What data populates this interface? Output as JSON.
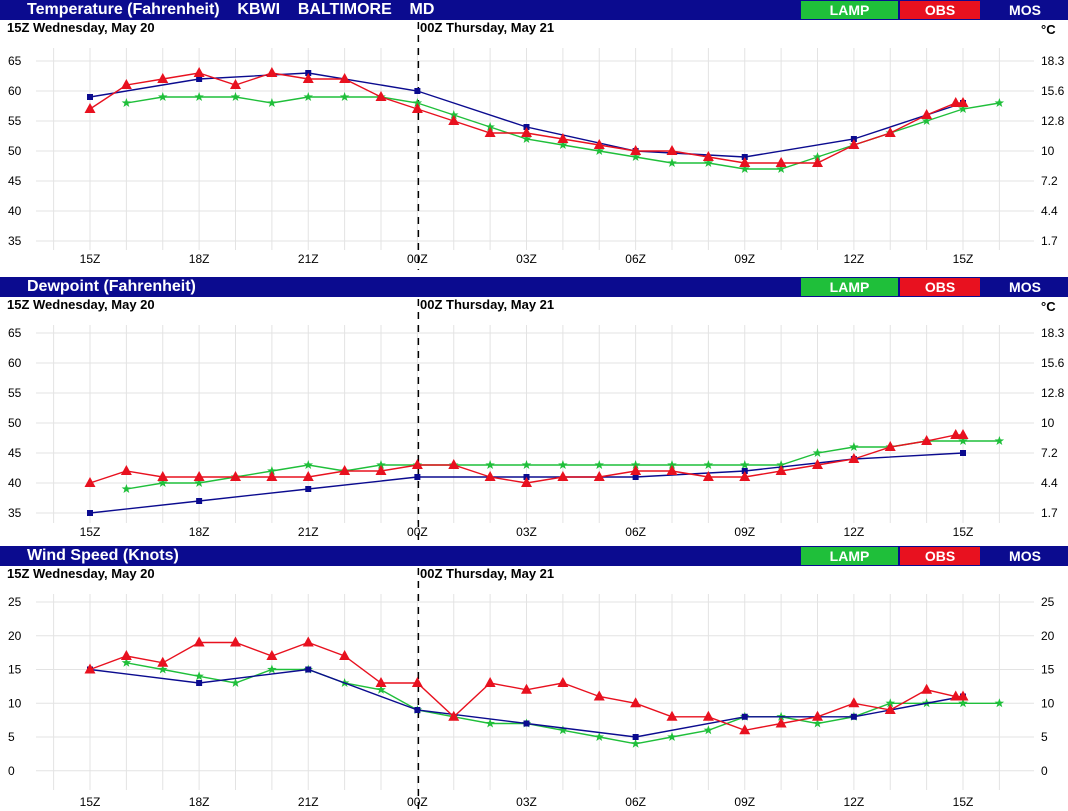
{
  "colors": {
    "header_bg": "#0b0b8f",
    "lamp": "#1fbf3a",
    "obs": "#e8111f",
    "mos": "#0b0b8f",
    "grid": "#e3e3e3"
  },
  "legend": {
    "lamp": "LAMP",
    "obs": "OBS",
    "mos": "MOS"
  },
  "date_left": "15Z Wednesday, May 20",
  "date_right": "00Z Thursday, May 21",
  "x_ticks": [
    "15Z",
    "18Z",
    "21Z",
    "00Z",
    "03Z",
    "06Z",
    "09Z",
    "12Z",
    "15Z"
  ],
  "panels": [
    {
      "title": "Temperature (Fahrenheit)    KBWI    BALTIMORE    MD",
      "right_unit": "°C",
      "y_ticks_left": [
        "65",
        "60",
        "55",
        "50",
        "45",
        "40",
        "35"
      ],
      "y_ticks_right": [
        "18.3",
        "15.6",
        "12.8",
        "10",
        "7.2",
        "4.4",
        "1.7"
      ]
    },
    {
      "title": "Dewpoint (Fahrenheit)",
      "right_unit": "°C",
      "y_ticks_left": [
        "65",
        "60",
        "55",
        "50",
        "45",
        "40",
        "35"
      ],
      "y_ticks_right": [
        "18.3",
        "15.6",
        "12.8",
        "10",
        "7.2",
        "4.4",
        "1.7"
      ]
    },
    {
      "title": "Wind Speed (Knots)",
      "right_unit": "",
      "y_ticks_left": [
        "25",
        "20",
        "15",
        "10",
        "5",
        "0"
      ],
      "y_ticks_right": [
        "25",
        "20",
        "15",
        "10",
        "5",
        "0"
      ]
    }
  ],
  "chart_data": [
    {
      "type": "line",
      "title": "Temperature (Fahrenheit)    KBWI    BALTIMORE    MD",
      "xlabel": "",
      "ylabel": "",
      "x_unit": "hours from 15Z May 20",
      "ylim": [
        32,
        67
      ],
      "y_ticks": [
        65,
        60,
        55,
        50,
        45,
        40,
        35
      ],
      "grid": true,
      "legend_placement": "top-right",
      "series": [
        {
          "name": "MOS",
          "points": [
            [
              0,
              59
            ],
            [
              3,
              62
            ],
            [
              6,
              63
            ],
            [
              9,
              60
            ],
            [
              12,
              54
            ],
            [
              15,
              50
            ],
            [
              18,
              49
            ],
            [
              21,
              52
            ],
            [
              24,
              58
            ]
          ]
        },
        {
          "name": "OBS",
          "points": [
            [
              0,
              57
            ],
            [
              1,
              61
            ],
            [
              2,
              62
            ],
            [
              3,
              63
            ],
            [
              4,
              61
            ],
            [
              5,
              63
            ],
            [
              6,
              62
            ],
            [
              7,
              62
            ],
            [
              8,
              59
            ],
            [
              9,
              57
            ],
            [
              10,
              55
            ],
            [
              11,
              53
            ],
            [
              12,
              53
            ],
            [
              13,
              52
            ],
            [
              14,
              51
            ],
            [
              15,
              50
            ],
            [
              16,
              50
            ],
            [
              17,
              49
            ],
            [
              18,
              48
            ],
            [
              19,
              48
            ],
            [
              20,
              48
            ],
            [
              21,
              51
            ],
            [
              22,
              53
            ],
            [
              23,
              56
            ],
            [
              23.8,
              58
            ],
            [
              24,
              58
            ]
          ]
        },
        {
          "name": "LAMP",
          "points": [
            [
              1,
              58
            ],
            [
              2,
              59
            ],
            [
              3,
              59
            ],
            [
              4,
              59
            ],
            [
              5,
              58
            ],
            [
              6,
              59
            ],
            [
              7,
              59
            ],
            [
              8,
              59
            ],
            [
              9,
              58
            ],
            [
              10,
              56
            ],
            [
              11,
              54
            ],
            [
              12,
              52
            ],
            [
              13,
              51
            ],
            [
              14,
              50
            ],
            [
              15,
              49
            ],
            [
              16,
              48
            ],
            [
              17,
              48
            ],
            [
              18,
              47
            ],
            [
              19,
              47
            ],
            [
              20,
              49
            ],
            [
              21,
              51
            ],
            [
              22,
              53
            ],
            [
              23,
              55
            ],
            [
              24,
              57
            ],
            [
              25,
              58
            ]
          ]
        }
      ]
    },
    {
      "type": "line",
      "title": "Dewpoint (Fahrenheit)",
      "xlabel": "",
      "ylabel": "",
      "x_unit": "hours from 15Z May 20",
      "ylim": [
        34,
        67
      ],
      "y_ticks": [
        65,
        60,
        55,
        50,
        45,
        40,
        35
      ],
      "grid": true,
      "legend_placement": "top-right",
      "series": [
        {
          "name": "MOS",
          "points": [
            [
              0,
              35
            ],
            [
              3,
              37
            ],
            [
              6,
              39
            ],
            [
              9,
              41
            ],
            [
              12,
              41
            ],
            [
              15,
              41
            ],
            [
              18,
              42
            ],
            [
              21,
              44
            ],
            [
              24,
              45
            ]
          ]
        },
        {
          "name": "OBS",
          "points": [
            [
              0,
              40
            ],
            [
              1,
              42
            ],
            [
              2,
              41
            ],
            [
              3,
              41
            ],
            [
              4,
              41
            ],
            [
              5,
              41
            ],
            [
              6,
              41
            ],
            [
              7,
              42
            ],
            [
              8,
              42
            ],
            [
              9,
              43
            ],
            [
              10,
              43
            ],
            [
              11,
              41
            ],
            [
              12,
              40
            ],
            [
              13,
              41
            ],
            [
              14,
              41
            ],
            [
              15,
              42
            ],
            [
              16,
              42
            ],
            [
              17,
              41
            ],
            [
              18,
              41
            ],
            [
              19,
              42
            ],
            [
              20,
              43
            ],
            [
              21,
              44
            ],
            [
              22,
              46
            ],
            [
              23,
              47
            ],
            [
              23.8,
              48
            ],
            [
              24,
              48
            ]
          ]
        },
        {
          "name": "LAMP",
          "points": [
            [
              1,
              39
            ],
            [
              2,
              40
            ],
            [
              3,
              40
            ],
            [
              4,
              41
            ],
            [
              5,
              42
            ],
            [
              6,
              43
            ],
            [
              7,
              42
            ],
            [
              8,
              43
            ],
            [
              9,
              43
            ],
            [
              10,
              43
            ],
            [
              11,
              43
            ],
            [
              12,
              43
            ],
            [
              13,
              43
            ],
            [
              14,
              43
            ],
            [
              15,
              43
            ],
            [
              16,
              43
            ],
            [
              17,
              43
            ],
            [
              18,
              43
            ],
            [
              19,
              43
            ],
            [
              20,
              45
            ],
            [
              21,
              46
            ],
            [
              22,
              46
            ],
            [
              23,
              47
            ],
            [
              24,
              47
            ],
            [
              25,
              47
            ]
          ]
        }
      ]
    },
    {
      "type": "line",
      "title": "Wind Speed (Knots)",
      "xlabel": "",
      "ylabel": "",
      "x_unit": "hours from 15Z May 20",
      "ylim": [
        -1,
        28
      ],
      "y_ticks": [
        25,
        20,
        15,
        10,
        5,
        0
      ],
      "grid": true,
      "legend_placement": "top-right",
      "series": [
        {
          "name": "MOS",
          "points": [
            [
              0,
              15
            ],
            [
              3,
              13
            ],
            [
              6,
              15
            ],
            [
              9,
              9
            ],
            [
              12,
              7
            ],
            [
              15,
              5
            ],
            [
              18,
              8
            ],
            [
              21,
              8
            ],
            [
              24,
              11
            ]
          ]
        },
        {
          "name": "OBS",
          "points": [
            [
              0,
              15
            ],
            [
              1,
              17
            ],
            [
              2,
              16
            ],
            [
              3,
              19
            ],
            [
              4,
              19
            ],
            [
              5,
              17
            ],
            [
              6,
              19
            ],
            [
              7,
              17
            ],
            [
              8,
              13
            ],
            [
              9,
              13
            ],
            [
              10,
              8
            ],
            [
              11,
              13
            ],
            [
              12,
              12
            ],
            [
              13,
              13
            ],
            [
              14,
              11
            ],
            [
              15,
              10
            ],
            [
              16,
              8
            ],
            [
              17,
              8
            ],
            [
              18,
              6
            ],
            [
              19,
              7
            ],
            [
              20,
              8
            ],
            [
              21,
              10
            ],
            [
              22,
              9
            ],
            [
              23,
              12
            ],
            [
              23.8,
              11
            ],
            [
              24,
              11
            ]
          ]
        },
        {
          "name": "LAMP",
          "points": [
            [
              1,
              16
            ],
            [
              2,
              15
            ],
            [
              3,
              14
            ],
            [
              4,
              13
            ],
            [
              5,
              15
            ],
            [
              6,
              15
            ],
            [
              7,
              13
            ],
            [
              8,
              12
            ],
            [
              9,
              9
            ],
            [
              10,
              8
            ],
            [
              11,
              7
            ],
            [
              12,
              7
            ],
            [
              13,
              6
            ],
            [
              14,
              5
            ],
            [
              15,
              4
            ],
            [
              16,
              5
            ],
            [
              17,
              6
            ],
            [
              18,
              8
            ],
            [
              19,
              8
            ],
            [
              20,
              7
            ],
            [
              21,
              8
            ],
            [
              22,
              10
            ],
            [
              23,
              10
            ],
            [
              24,
              10
            ],
            [
              25,
              10
            ]
          ]
        }
      ]
    }
  ]
}
